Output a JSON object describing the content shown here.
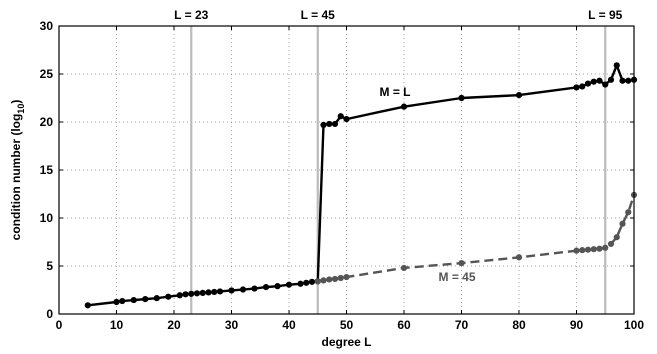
{
  "chart_data": {
    "type": "line",
    "title": "",
    "xlabel": "degree L",
    "ylabel": "condition number (log",
    "ylabel_sub": "10",
    "ylabel_end": ")",
    "xlim": [
      0,
      100
    ],
    "ylim": [
      0,
      30
    ],
    "xticks": [
      0,
      10,
      20,
      30,
      40,
      50,
      60,
      70,
      80,
      90,
      100
    ],
    "yticks": [
      0,
      5,
      10,
      15,
      20,
      25,
      30
    ],
    "grid": true,
    "colors": {
      "series1": "#000000",
      "series2": "#555555",
      "reference_lines": "#bbbbbb",
      "grid": "#888888"
    },
    "reference_lines": [
      {
        "x": 23,
        "label": "L = 23"
      },
      {
        "x": 45,
        "label": "L = 45"
      },
      {
        "x": 95,
        "label": "L = 95"
      }
    ],
    "series": [
      {
        "name": "M = L",
        "style": "solid",
        "points": [
          [
            5,
            0.9
          ],
          [
            10,
            1.25
          ],
          [
            11,
            1.35
          ],
          [
            13,
            1.45
          ],
          [
            15,
            1.55
          ],
          [
            17,
            1.65
          ],
          [
            19,
            1.8
          ],
          [
            21,
            1.95
          ],
          [
            22,
            2.05
          ],
          [
            23,
            2.1
          ],
          [
            24,
            2.15
          ],
          [
            25,
            2.2
          ],
          [
            26,
            2.25
          ],
          [
            27,
            2.3
          ],
          [
            28,
            2.35
          ],
          [
            30,
            2.45
          ],
          [
            32,
            2.55
          ],
          [
            34,
            2.65
          ],
          [
            36,
            2.8
          ],
          [
            38,
            2.9
          ],
          [
            40,
            3.05
          ],
          [
            42,
            3.15
          ],
          [
            43,
            3.25
          ],
          [
            44,
            3.35
          ],
          [
            45,
            3.4
          ],
          [
            46,
            19.7
          ],
          [
            47,
            19.8
          ],
          [
            48,
            19.8
          ],
          [
            49,
            20.6
          ],
          [
            50,
            20.3
          ],
          [
            60,
            21.6
          ],
          [
            70,
            22.5
          ],
          [
            80,
            22.8
          ],
          [
            90,
            23.6
          ],
          [
            91,
            23.7
          ],
          [
            92,
            24.0
          ],
          [
            93,
            24.2
          ],
          [
            94,
            24.3
          ],
          [
            95,
            23.9
          ],
          [
            96,
            24.4
          ],
          [
            97,
            25.9
          ],
          [
            98,
            24.3
          ],
          [
            99,
            24.3
          ],
          [
            100,
            24.4
          ]
        ]
      },
      {
        "name": "M = 45",
        "style": "dashed",
        "points": [
          [
            45,
            3.4
          ],
          [
            46,
            3.5
          ],
          [
            47,
            3.6
          ],
          [
            48,
            3.65
          ],
          [
            49,
            3.75
          ],
          [
            50,
            3.85
          ],
          [
            60,
            4.8
          ],
          [
            70,
            5.3
          ],
          [
            80,
            5.9
          ],
          [
            90,
            6.6
          ],
          [
            91,
            6.65
          ],
          [
            92,
            6.7
          ],
          [
            93,
            6.75
          ],
          [
            94,
            6.8
          ],
          [
            95,
            6.9
          ],
          [
            96,
            7.3
          ],
          [
            97,
            8.0
          ],
          [
            98,
            9.4
          ],
          [
            99,
            10.6
          ],
          [
            100,
            12.4
          ]
        ]
      }
    ],
    "annotations": [
      {
        "text": "M = L",
        "series": 0
      },
      {
        "text": "M = 45",
        "series": 1
      }
    ]
  }
}
